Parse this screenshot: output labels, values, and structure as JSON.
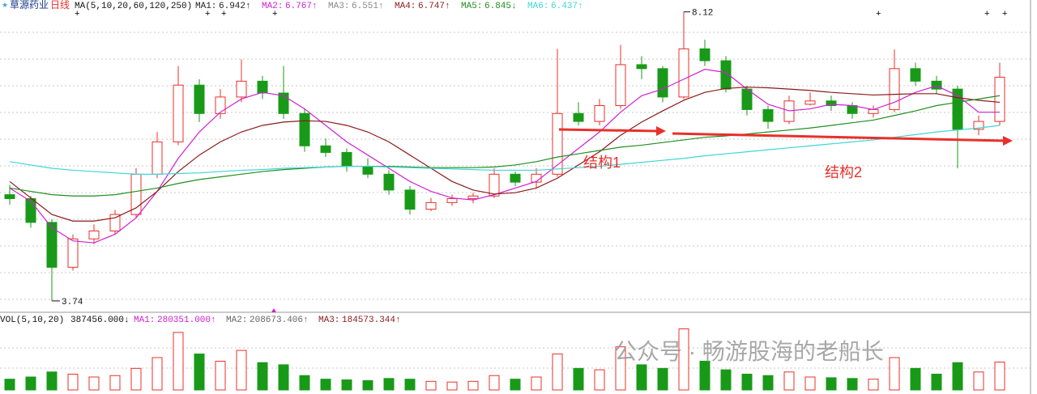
{
  "chart_data": {
    "type": "candlestick",
    "title": "草源药业",
    "period": "日线",
    "ma_header": "MA(5,10,20,60,120,250)",
    "ma_labels": [
      {
        "name": "MA1:",
        "value": "6.942↑",
        "color": "#222222"
      },
      {
        "name": "MA2:",
        "value": "6.767↑",
        "color": "#d020d0"
      },
      {
        "name": "MA3:",
        "value": "6.551↑",
        "color": "#888888"
      },
      {
        "name": "MA4:",
        "value": "6.747↑",
        "color": "#8b1a1a"
      },
      {
        "name": "MA5:",
        "value": "6.845↓",
        "color": "#1f8f1f"
      },
      {
        "name": "MA6:",
        "value": "6.437↑",
        "color": "#3fd6d6"
      }
    ],
    "ylim": [
      3.58,
      8.3
    ],
    "up_color": "#e8302a",
    "down_color": "#189a18",
    "open": [
      5.35,
      5.29,
      4.93,
      4.25,
      4.68,
      4.8,
      5.05,
      5.66,
      6.15,
      7.01,
      6.58,
      6.83,
      7.07,
      6.89,
      6.58,
      6.09,
      5.99,
      5.78,
      5.66,
      5.42,
      5.13,
      5.23,
      5.29,
      5.33,
      5.66,
      5.54,
      5.66,
      6.58,
      6.46,
      6.7,
      7.32,
      7.26,
      6.83,
      7.56,
      7.38,
      6.95,
      6.64,
      6.46,
      6.72,
      6.77,
      6.7,
      6.58,
      6.64,
      7.26,
      7.07,
      6.95,
      6.34,
      6.46
    ],
    "high": [
      5.5,
      5.33,
      4.98,
      4.75,
      4.9,
      5.12,
      5.75,
      6.3,
      7.3,
      7.1,
      6.95,
      7.4,
      7.15,
      7.3,
      6.65,
      6.2,
      6.05,
      5.9,
      5.72,
      5.48,
      5.3,
      5.35,
      5.38,
      5.75,
      5.7,
      5.75,
      7.56,
      6.75,
      6.8,
      7.62,
      7.45,
      7.3,
      8.12,
      7.7,
      7.45,
      7.0,
      6.7,
      6.85,
      6.9,
      6.85,
      6.75,
      6.7,
      7.55,
      7.35,
      7.15,
      7.0,
      6.55,
      7.35
    ],
    "low": [
      5.2,
      4.85,
      3.74,
      4.2,
      4.6,
      4.75,
      5.0,
      5.6,
      6.1,
      6.45,
      6.5,
      6.75,
      6.8,
      6.5,
      6.0,
      5.92,
      5.7,
      5.6,
      5.35,
      5.05,
      5.1,
      5.18,
      5.22,
      5.3,
      5.48,
      5.45,
      5.62,
      6.4,
      6.4,
      6.65,
      7.1,
      6.75,
      6.8,
      7.3,
      6.9,
      6.55,
      6.35,
      6.42,
      6.7,
      6.62,
      6.5,
      6.52,
      6.6,
      7.0,
      6.88,
      5.75,
      6.25,
      6.4
    ],
    "close": [
      5.29,
      4.93,
      4.25,
      4.68,
      4.8,
      5.05,
      5.66,
      6.15,
      7.01,
      6.58,
      6.83,
      7.07,
      6.89,
      6.58,
      6.09,
      5.99,
      5.78,
      5.66,
      5.42,
      5.13,
      5.23,
      5.29,
      5.33,
      5.66,
      5.54,
      5.66,
      6.58,
      6.46,
      6.7,
      7.32,
      7.26,
      6.83,
      7.56,
      7.38,
      6.95,
      6.64,
      6.46,
      6.77,
      6.77,
      6.7,
      6.58,
      6.64,
      7.26,
      7.07,
      6.95,
      6.34,
      6.46,
      7.13
    ],
    "lines": [
      {
        "color": "#d020d0",
        "values": [
          5.45,
          5.25,
          4.85,
          4.65,
          4.62,
          4.75,
          5.0,
          5.4,
          5.9,
          6.3,
          6.6,
          6.8,
          6.9,
          6.85,
          6.65,
          6.4,
          6.15,
          5.95,
          5.75,
          5.55,
          5.4,
          5.3,
          5.27,
          5.35,
          5.45,
          5.55,
          5.8,
          6.05,
          6.3,
          6.6,
          6.85,
          6.95,
          7.1,
          7.25,
          7.2,
          6.95,
          6.72,
          6.62,
          6.65,
          6.72,
          6.7,
          6.64,
          6.75,
          6.9,
          7.0,
          6.85,
          6.6,
          6.6
        ]
      },
      {
        "color": "#8b1a1a",
        "values": [
          5.55,
          5.3,
          5.05,
          4.95,
          4.95,
          5.0,
          5.15,
          5.4,
          5.7,
          5.95,
          6.15,
          6.3,
          6.4,
          6.45,
          6.47,
          6.46,
          6.4,
          6.3,
          6.15,
          5.95,
          5.75,
          5.55,
          5.42,
          5.36,
          5.38,
          5.45,
          5.6,
          5.8,
          6.0,
          6.25,
          6.45,
          6.62,
          6.78,
          6.9,
          6.96,
          6.98,
          6.97,
          6.95,
          6.93,
          6.9,
          6.88,
          6.86,
          6.87,
          6.88,
          6.88,
          6.82,
          6.78,
          6.75
        ]
      },
      {
        "color": "#1f8f1f",
        "values": [
          5.45,
          5.4,
          5.35,
          5.33,
          5.33,
          5.35,
          5.4,
          5.45,
          5.52,
          5.58,
          5.62,
          5.66,
          5.7,
          5.73,
          5.75,
          5.77,
          5.78,
          5.78,
          5.78,
          5.77,
          5.76,
          5.76,
          5.76,
          5.77,
          5.8,
          5.85,
          5.92,
          5.97,
          6.02,
          6.07,
          6.1,
          6.14,
          6.18,
          6.22,
          6.24,
          6.27,
          6.3,
          6.33,
          6.36,
          6.4,
          6.44,
          6.48,
          6.55,
          6.62,
          6.7,
          6.75,
          6.8,
          6.85
        ]
      },
      {
        "color": "#3fd6d6",
        "values": [
          5.85,
          5.8,
          5.75,
          5.72,
          5.7,
          5.68,
          5.66,
          5.66,
          5.67,
          5.68,
          5.7,
          5.72,
          5.73,
          5.75,
          5.76,
          5.77,
          5.78,
          5.78,
          5.77,
          5.76,
          5.75,
          5.74,
          5.73,
          5.72,
          5.72,
          5.72,
          5.74,
          5.76,
          5.78,
          5.81,
          5.84,
          5.87,
          5.9,
          5.94,
          5.97,
          6.0,
          6.03,
          6.06,
          6.09,
          6.12,
          6.15,
          6.18,
          6.22,
          6.26,
          6.3,
          6.33,
          6.36,
          6.4
        ]
      }
    ],
    "high_label": "8.12",
    "low_label": "3.74",
    "notes": [
      "结构1",
      "结构2"
    ],
    "volume": {
      "header": "VOL(5,10,20)",
      "value": "387456.000↓",
      "ma_labels": [
        {
          "name": "MA1:",
          "value": "280351.000↑",
          "color": "#d020d0"
        },
        {
          "name": "MA2:",
          "value": "208673.406↑",
          "color": "#666666"
        },
        {
          "name": "MA3:",
          "value": "184573.344↑",
          "color": "#8b1a1a"
        }
      ],
      "ylim": [
        0,
        900000
      ],
      "values": [
        150000,
        180000,
        250000,
        220000,
        180000,
        200000,
        300000,
        450000,
        800000,
        500000,
        400000,
        550000,
        380000,
        350000,
        200000,
        150000,
        140000,
        130000,
        160000,
        150000,
        120000,
        110000,
        120000,
        200000,
        150000,
        180000,
        500000,
        300000,
        280000,
        600000,
        350000,
        300000,
        850000,
        400000,
        280000,
        220000,
        200000,
        250000,
        180000,
        170000,
        160000,
        150000,
        450000,
        300000,
        220000,
        380000,
        250000,
        387456
      ]
    },
    "watermark": "公众号 · 畅游股海的老船长"
  }
}
